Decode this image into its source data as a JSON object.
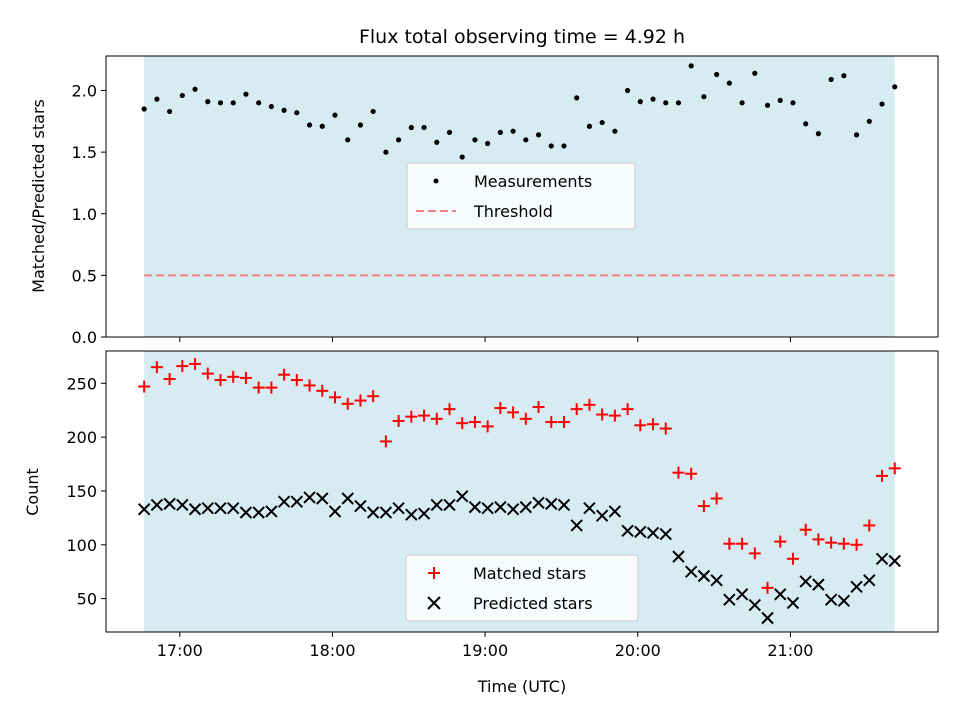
{
  "chart_data": [
    {
      "type": "scatter",
      "title": "Flux total observing time = 4.92 h",
      "xlabel": "",
      "ylabel": "Matched/Predicted stars",
      "xlim": [
        "16:31",
        "21:58"
      ],
      "ylim": [
        0,
        2.28
      ],
      "yticks": [
        "0.0",
        "0.5",
        "1.0",
        "1.5",
        "2.0"
      ],
      "xticks": [
        "17:00",
        "18:00",
        "19:00",
        "20:00",
        "21:00"
      ],
      "observing_window": [
        "16:46",
        "21:41"
      ],
      "observing_window_color": "#add8e6",
      "threshold": {
        "name": "Threshold",
        "value": 0.5,
        "color": "#f08080",
        "style": "dashed"
      },
      "series": [
        {
          "name": "Measurements",
          "marker": "dot",
          "color": "#000000",
          "x": [
            "16:46",
            "16:51",
            "16:56",
            "17:01",
            "17:06",
            "17:11",
            "17:16",
            "17:21",
            "17:26",
            "17:31",
            "17:36",
            "17:41",
            "17:46",
            "17:51",
            "17:56",
            "18:01",
            "18:06",
            "18:11",
            "18:16",
            "18:21",
            "18:26",
            "18:31",
            "18:36",
            "18:41",
            "18:46",
            "18:51",
            "18:56",
            "19:01",
            "19:06",
            "19:11",
            "19:16",
            "19:21",
            "19:26",
            "19:31",
            "19:36",
            "19:41",
            "19:46",
            "19:51",
            "19:56",
            "20:01",
            "20:06",
            "20:11",
            "20:16",
            "20:21",
            "20:26",
            "20:31",
            "20:36",
            "20:41",
            "20:46",
            "20:51",
            "20:56",
            "21:01",
            "21:06",
            "21:11",
            "21:16",
            "21:21",
            "21:26",
            "21:31",
            "21:36",
            "21:41"
          ],
          "values": [
            1.85,
            1.93,
            1.83,
            1.96,
            2.01,
            1.91,
            1.9,
            1.9,
            1.97,
            1.9,
            1.87,
            1.84,
            1.82,
            1.72,
            1.71,
            1.8,
            1.6,
            1.72,
            1.83,
            1.5,
            1.6,
            1.7,
            1.7,
            1.58,
            1.66,
            1.46,
            1.6,
            1.57,
            1.66,
            1.67,
            1.6,
            1.64,
            1.55,
            1.55,
            1.94,
            1.71,
            1.74,
            1.67,
            2.0,
            1.91,
            1.93,
            1.9,
            1.9,
            2.2,
            1.95,
            2.13,
            2.06,
            1.9,
            2.14,
            1.88,
            1.92,
            1.9,
            1.73,
            1.65,
            2.09,
            2.12,
            1.64,
            1.75,
            1.89,
            2.03
          ]
        }
      ],
      "legend": {
        "location": "center",
        "entries": [
          "Measurements",
          "Threshold"
        ]
      }
    },
    {
      "type": "scatter",
      "title": "",
      "xlabel": "Time (UTC)",
      "ylabel": "Count",
      "xlim": [
        "16:31",
        "21:58"
      ],
      "ylim": [
        19,
        280
      ],
      "yticks": [
        "50",
        "100",
        "150",
        "200",
        "250"
      ],
      "xticks": [
        "17:00",
        "18:00",
        "19:00",
        "20:00",
        "21:00"
      ],
      "observing_window": [
        "16:46",
        "21:41"
      ],
      "series": [
        {
          "name": "Matched stars",
          "marker": "plus",
          "color": "#ff0000",
          "x": [
            "16:46",
            "16:51",
            "16:56",
            "17:01",
            "17:06",
            "17:11",
            "17:16",
            "17:21",
            "17:26",
            "17:31",
            "17:36",
            "17:41",
            "17:46",
            "17:51",
            "17:56",
            "18:01",
            "18:06",
            "18:11",
            "18:16",
            "18:21",
            "18:26",
            "18:31",
            "18:36",
            "18:41",
            "18:46",
            "18:51",
            "18:56",
            "19:01",
            "19:06",
            "19:11",
            "19:16",
            "19:21",
            "19:26",
            "19:31",
            "19:36",
            "19:41",
            "19:46",
            "19:51",
            "19:56",
            "20:01",
            "20:06",
            "20:11",
            "20:16",
            "20:21",
            "20:26",
            "20:31",
            "20:36",
            "20:41",
            "20:46",
            "20:51",
            "20:56",
            "21:01",
            "21:06",
            "21:11",
            "21:16",
            "21:21",
            "21:26",
            "21:31",
            "21:36",
            "21:41"
          ],
          "values": [
            247,
            265,
            254,
            266,
            268,
            259,
            253,
            256,
            255,
            246,
            246,
            258,
            253,
            248,
            243,
            237,
            231,
            234,
            238,
            196,
            215,
            219,
            220,
            217,
            226,
            213,
            214,
            210,
            227,
            223,
            217,
            228,
            214,
            214,
            226,
            230,
            221,
            220,
            226,
            211,
            212,
            208,
            167,
            166,
            136,
            143,
            101,
            101,
            92,
            60,
            103,
            87,
            114,
            105,
            102,
            101,
            100,
            118,
            164,
            171
          ]
        },
        {
          "name": "Predicted stars",
          "marker": "x",
          "color": "#000000",
          "x": [
            "16:46",
            "16:51",
            "16:56",
            "17:01",
            "17:06",
            "17:11",
            "17:16",
            "17:21",
            "17:26",
            "17:31",
            "17:36",
            "17:41",
            "17:46",
            "17:51",
            "17:56",
            "18:01",
            "18:06",
            "18:11",
            "18:16",
            "18:21",
            "18:26",
            "18:31",
            "18:36",
            "18:41",
            "18:46",
            "18:51",
            "18:56",
            "19:01",
            "19:06",
            "19:11",
            "19:16",
            "19:21",
            "19:26",
            "19:31",
            "19:36",
            "19:41",
            "19:46",
            "19:51",
            "19:56",
            "20:01",
            "20:06",
            "20:11",
            "20:16",
            "20:21",
            "20:26",
            "20:31",
            "20:36",
            "20:41",
            "20:46",
            "20:51",
            "20:56",
            "21:01",
            "21:06",
            "21:11",
            "21:16",
            "21:21",
            "21:26",
            "21:31",
            "21:36",
            "21:41"
          ],
          "values": [
            133,
            137,
            138,
            137,
            133,
            134,
            134,
            134,
            130,
            130,
            131,
            140,
            140,
            144,
            143,
            131,
            143,
            136,
            130,
            130,
            134,
            128,
            129,
            137,
            137,
            145,
            135,
            134,
            135,
            133,
            135,
            139,
            138,
            137,
            118,
            134,
            127,
            131,
            113,
            112,
            111,
            110,
            89,
            75,
            71,
            67,
            49,
            54,
            44,
            32,
            54,
            46,
            66,
            63,
            49,
            48,
            61,
            67,
            87,
            85
          ]
        }
      ],
      "legend": {
        "location": "lower center",
        "entries": [
          "Matched stars",
          "Predicted stars"
        ]
      }
    }
  ]
}
